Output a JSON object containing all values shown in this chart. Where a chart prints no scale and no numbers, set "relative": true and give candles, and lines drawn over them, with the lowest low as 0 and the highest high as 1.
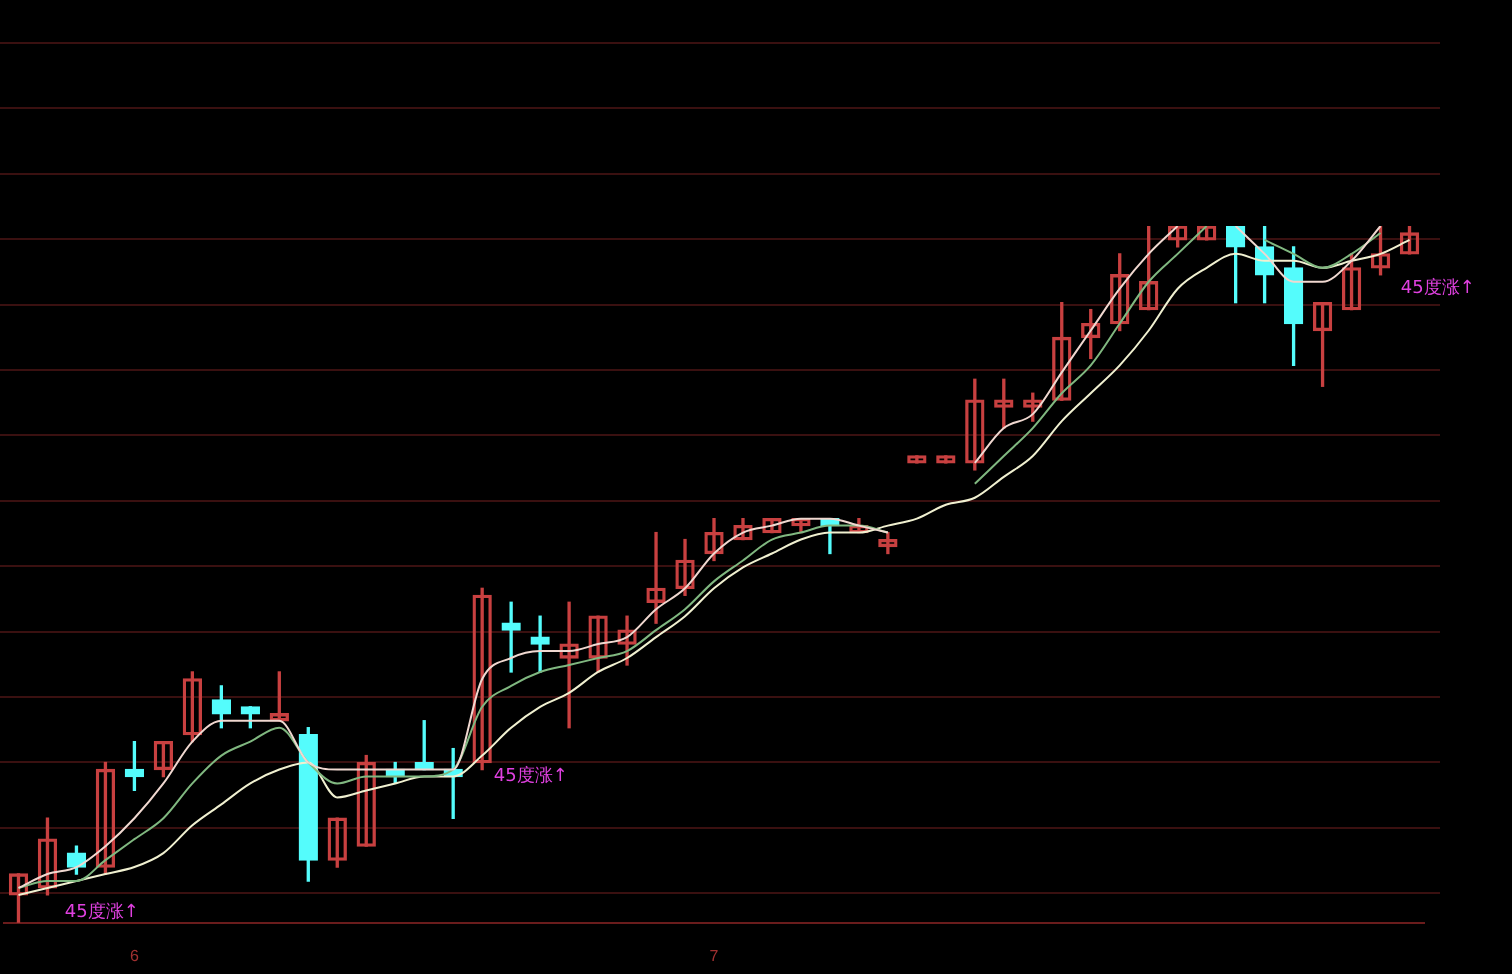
{
  "chart_data": {
    "type": "candlestick",
    "relative": true,
    "legend": false,
    "grid": false,
    "categories": [
      null,
      null,
      null,
      null,
      "6",
      null,
      null,
      null,
      null,
      null,
      null,
      null,
      null,
      null,
      null,
      null,
      null,
      null,
      null,
      null,
      null,
      null,
      null,
      null,
      "7",
      null,
      null,
      null,
      null,
      null,
      null,
      null,
      null,
      null,
      null,
      null,
      null,
      null,
      null,
      null,
      null,
      null,
      null,
      null,
      null,
      null,
      null,
      null,
      null
    ],
    "ohlc": [
      [
        0.04,
        0.07,
        0,
        0.07
      ],
      [
        0.05,
        0.15,
        0.04,
        0.12
      ],
      [
        0.1,
        0.11,
        0.07,
        0.08
      ],
      [
        0.08,
        0.23,
        0.07,
        0.22
      ],
      [
        0.22,
        0.26,
        0.19,
        0.21
      ],
      [
        0.22,
        0.26,
        0.21,
        0.26
      ],
      [
        0.27,
        0.36,
        0.26,
        0.35
      ],
      [
        0.32,
        0.34,
        0.28,
        0.3
      ],
      [
        0.31,
        0.31,
        0.28,
        0.3
      ],
      [
        0.29,
        0.36,
        0.29,
        0.3
      ],
      [
        0.27,
        0.28,
        0.06,
        0.09
      ],
      [
        0.09,
        0.15,
        0.08,
        0.15
      ],
      [
        0.11,
        0.24,
        0.11,
        0.23
      ],
      [
        0.22,
        0.23,
        0.2,
        0.21
      ],
      [
        0.23,
        0.29,
        0.22,
        0.22
      ],
      [
        0.22,
        0.25,
        0.15,
        0.21
      ],
      [
        0.23,
        0.48,
        0.22,
        0.47
      ],
      [
        0.43,
        0.46,
        0.36,
        0.42
      ],
      [
        0.41,
        0.44,
        0.36,
        0.4
      ],
      [
        0.38,
        0.46,
        0.28,
        0.4
      ],
      [
        0.38,
        0.44,
        0.36,
        0.44
      ],
      [
        0.4,
        0.44,
        0.37,
        0.42
      ],
      [
        0.46,
        0.56,
        0.43,
        0.48
      ],
      [
        0.48,
        0.55,
        0.47,
        0.52
      ],
      [
        0.53,
        0.58,
        0.52,
        0.56
      ],
      [
        0.55,
        0.58,
        0.55,
        0.57
      ],
      [
        0.56,
        0.58,
        0.56,
        0.58
      ],
      [
        0.57,
        0.58,
        0.56,
        0.58
      ],
      [
        0.58,
        0.58,
        0.53,
        0.57
      ],
      [
        0.56,
        0.58,
        0.56,
        0.57
      ],
      [
        0.54,
        0.56,
        0.53,
        0.55
      ],
      [
        0.66,
        0.67,
        0.66,
        0.67
      ],
      [
        0.66,
        0.67,
        0.66,
        0.67
      ],
      [
        0.66,
        0.78,
        0.65,
        0.75
      ],
      [
        0.74,
        0.78,
        0.71,
        0.75
      ],
      [
        0.74,
        0.76,
        0.72,
        0.75
      ],
      [
        0.75,
        0.89,
        0.75,
        0.84
      ],
      [
        0.84,
        0.88,
        0.81,
        0.86
      ],
      [
        0.86,
        0.96,
        0.85,
        0.93
      ],
      [
        0.88,
        1,
        0.88,
        0.92
      ],
      [
        0.98,
        1,
        0.97,
        1
      ],
      [
        0.98,
        1,
        0.98,
        1
      ],
      [
        1,
        1,
        0.89,
        0.97
      ],
      [
        0.97,
        1,
        0.89,
        0.93
      ],
      [
        0.94,
        0.97,
        0.8,
        0.86
      ],
      [
        0.85,
        0.89,
        0.77,
        0.89
      ],
      [
        0.88,
        0.96,
        0.88,
        0.94
      ],
      [
        0.94,
        1,
        0.93,
        0.96
      ],
      [
        0.96,
        1,
        0.96,
        0.99
      ]
    ],
    "colors": [
      "#c84040",
      "#c84040",
      "#54fcfc",
      "#c84040",
      "#54fcfc",
      "#c84040",
      "#c84040",
      "#54fcfc",
      "#54fcfc",
      "#c84040",
      "#54fcfc",
      "#c84040",
      "#c84040",
      "#54fcfc",
      "#54fcfc",
      "#54fcfc",
      "#c84040",
      "#54fcfc",
      "#54fcfc",
      "#c84040",
      "#c84040",
      "#c84040",
      "#c84040",
      "#c84040",
      "#c84040",
      "#c84040",
      "#c84040",
      "#c84040",
      "#54fcfc",
      "#c84040",
      "#c84040",
      "#c84040",
      "#c84040",
      "#c84040",
      "#c84040",
      "#c84040",
      "#c84040",
      "#c84040",
      "#c84040",
      "#c84040",
      "#c84040",
      "#c84040",
      "#54fcfc",
      "#54fcfc",
      "#54fcfc",
      "#c84040",
      "#c84040",
      "#c84040",
      "#c84040"
    ],
    "series": [
      {
        "type": "line",
        "color": "#f0d8d0",
        "values": [
          0.05,
          0.07,
          0.08,
          0.11,
          0.15,
          0.2,
          0.26,
          0.29,
          0.29,
          0.29,
          0.23,
          0.22,
          0.22,
          0.22,
          0.22,
          0.22,
          0.35,
          0.38,
          0.39,
          0.39,
          0.4,
          0.41,
          0.45,
          0.48,
          0.53,
          0.56,
          0.57,
          0.58,
          0.58,
          0.57,
          0.56,
          null,
          null,
          0.66,
          0.71,
          0.73,
          0.79,
          0.85,
          0.91,
          0.96,
          1,
          null,
          1,
          0.96,
          0.92,
          0.92,
          0.95,
          1,
          null
        ]
      },
      {
        "type": "line",
        "color": "#80b880",
        "values": [
          0.05,
          0.06,
          0.06,
          0.09,
          0.12,
          0.15,
          0.2,
          0.24,
          0.26,
          0.28,
          0.23,
          0.2,
          0.21,
          0.21,
          0.21,
          0.22,
          0.31,
          0.34,
          0.36,
          0.37,
          0.38,
          0.39,
          0.42,
          0.45,
          0.49,
          0.52,
          0.55,
          0.56,
          0.57,
          0.57,
          0.56,
          null,
          null,
          0.63,
          0.67,
          0.71,
          0.76,
          0.8,
          0.86,
          0.92,
          0.96,
          1,
          null,
          0.98,
          0.96,
          0.94,
          0.96,
          0.99,
          null
        ]
      },
      {
        "type": "line",
        "color": "#f0f0d0",
        "values": [
          0.04,
          0.05,
          0.06,
          0.07,
          0.08,
          0.1,
          0.14,
          0.17,
          0.2,
          0.22,
          0.23,
          0.18,
          0.19,
          0.2,
          0.21,
          0.21,
          0.24,
          0.28,
          0.31,
          0.33,
          0.36,
          0.38,
          0.41,
          0.44,
          0.48,
          0.51,
          0.53,
          0.55,
          0.56,
          0.56,
          0.57,
          0.58,
          0.6,
          0.61,
          0.64,
          0.67,
          0.72,
          0.76,
          0.8,
          0.85,
          0.91,
          0.94,
          0.96,
          0.95,
          0.95,
          0.94,
          0.95,
          0.96,
          0.98
        ]
      }
    ],
    "annotations": [
      "45度涨↑",
      "45度涨↑",
      "45度涨↑"
    ]
  }
}
